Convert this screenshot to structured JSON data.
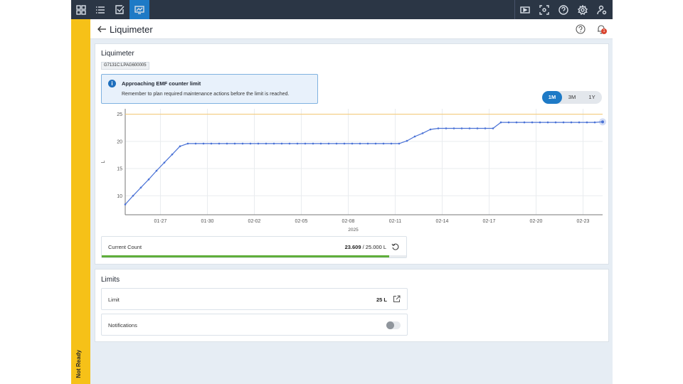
{
  "sidebar_status": "Not Ready",
  "header": {
    "title": "Liquimeter"
  },
  "notifications_badge": "1",
  "card": {
    "title": "Liquimeter",
    "device_id": "G7131C:LPAG600005",
    "alert": {
      "title": "Approaching EMF counter limit",
      "text": "Remember to plan required maintenance actions before the limit is reached."
    },
    "ranges": [
      "1M",
      "3M",
      "1Y"
    ],
    "selected_range": "1M"
  },
  "chart_data": {
    "type": "line",
    "title": "",
    "xlabel": "2025",
    "ylabel": "L",
    "x_tick_labels": [
      "01-27",
      "01-30",
      "02-02",
      "02-05",
      "02-08",
      "02-11",
      "02-14",
      "02-17",
      "02-20",
      "02-23"
    ],
    "y_ticks": [
      10,
      15,
      20,
      25
    ],
    "ylim": [
      6.5,
      26
    ],
    "threshold": 25,
    "x": [
      "01-25",
      "01-25",
      "01-26",
      "01-26",
      "01-27",
      "01-27",
      "01-28",
      "01-28",
      "01-29",
      "01-29",
      "01-30",
      "01-30",
      "01-31",
      "01-31",
      "02-01",
      "02-01",
      "02-02",
      "02-02",
      "02-03",
      "02-03",
      "02-04",
      "02-04",
      "02-05",
      "02-05",
      "02-06",
      "02-06",
      "02-07",
      "02-07",
      "02-08",
      "02-08",
      "02-09",
      "02-09",
      "02-10",
      "02-10",
      "02-11",
      "02-11",
      "02-12",
      "02-12",
      "02-13",
      "02-13",
      "02-14",
      "02-14",
      "02-15",
      "02-15",
      "02-16",
      "02-16",
      "02-17",
      "02-17",
      "02-18",
      "02-18",
      "02-19",
      "02-19",
      "02-20",
      "02-20",
      "02-21",
      "02-21",
      "02-22",
      "02-22",
      "02-23",
      "02-23",
      "02-24",
      "02-24"
    ],
    "values": [
      8.4,
      10.0,
      11.5,
      13.0,
      14.6,
      16.1,
      17.6,
      19.1,
      19.6,
      19.6,
      19.6,
      19.6,
      19.6,
      19.6,
      19.6,
      19.6,
      19.6,
      19.6,
      19.6,
      19.6,
      19.6,
      19.6,
      19.6,
      19.6,
      19.6,
      19.6,
      19.6,
      19.6,
      19.6,
      19.6,
      19.6,
      19.6,
      19.6,
      19.6,
      19.6,
      19.6,
      20.1,
      20.9,
      21.5,
      22.2,
      22.4,
      22.4,
      22.4,
      22.4,
      22.4,
      22.4,
      22.4,
      22.4,
      23.5,
      23.5,
      23.5,
      23.5,
      23.5,
      23.5,
      23.5,
      23.5,
      23.5,
      23.5,
      23.5,
      23.5,
      23.5,
      23.6
    ],
    "colors": {
      "line": "#4a72d6",
      "threshold": "#f4c870",
      "grid": "#e9ecef"
    }
  },
  "current_count": {
    "label": "Current Count",
    "value": "23.609",
    "separator": " / ",
    "limit": "25.000 L",
    "fraction": 0.944
  },
  "limits": {
    "title": "Limits",
    "limit_label": "Limit",
    "limit_value": "25 L",
    "notifications_label": "Notifications",
    "notifications_on": false
  },
  "icons": {
    "topbar_left": [
      "dashboard-icon",
      "list-icon",
      "checklist-icon",
      "monitor-icon"
    ],
    "topbar_right": [
      "media-icon",
      "scan-icon",
      "help-icon",
      "settings-icon",
      "user-settings-icon"
    ]
  }
}
